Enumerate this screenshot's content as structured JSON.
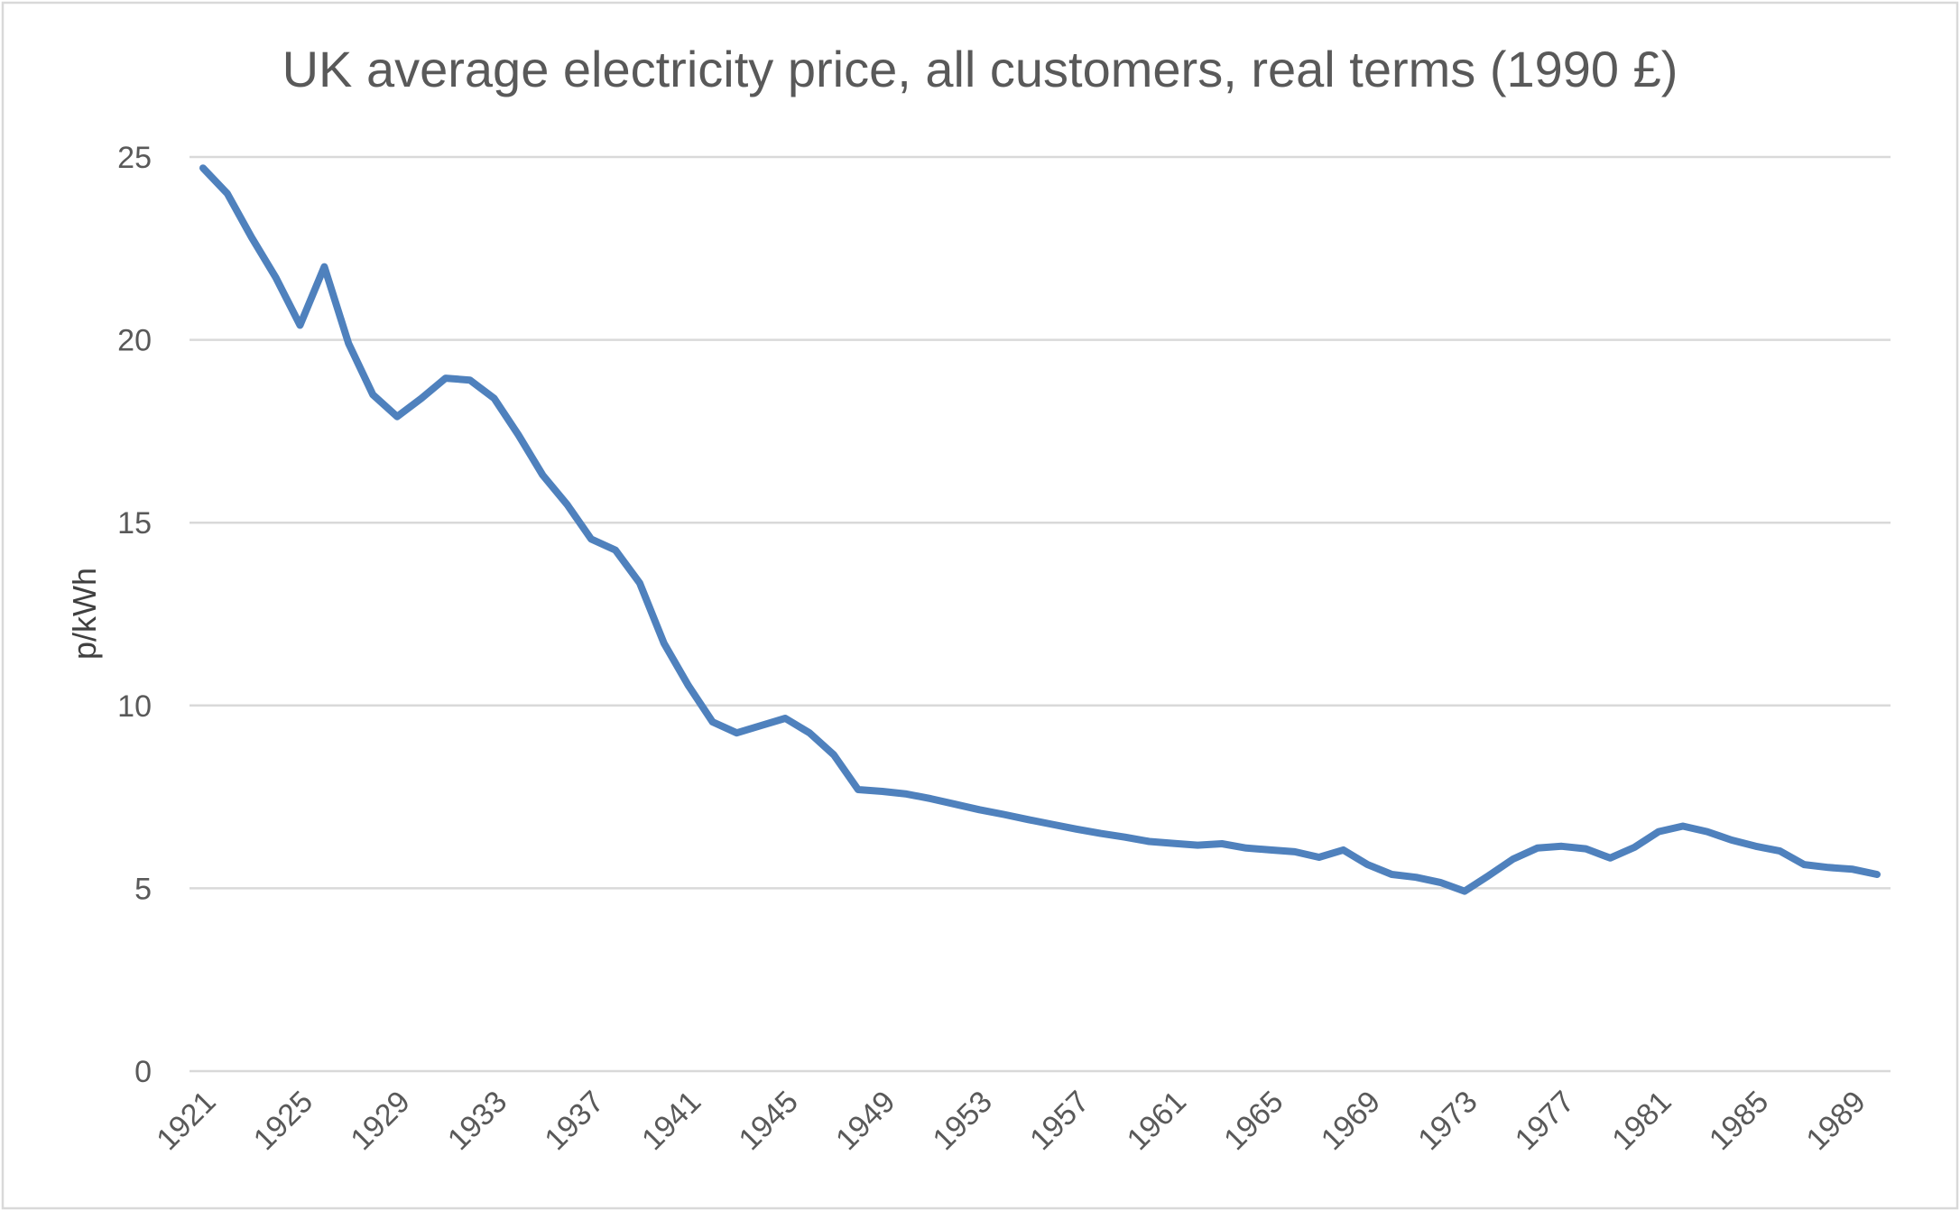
{
  "chart_data": {
    "type": "line",
    "title": "UK average electricity price, all customers, real terms (1990 £)",
    "xlabel": "",
    "ylabel": "p/kWh",
    "ylim": [
      0,
      25
    ],
    "yticks": [
      0,
      5,
      10,
      15,
      20,
      25
    ],
    "xtick_labels": [
      "1921",
      "1925",
      "1929",
      "1933",
      "1937",
      "1941",
      "1945",
      "1949",
      "1953",
      "1957",
      "1961",
      "1965",
      "1969",
      "1973",
      "1977",
      "1981",
      "1985",
      "1989"
    ],
    "grid": true,
    "legend": "none",
    "colors": {
      "line": "#4f81bd",
      "grid": "#d9d9d9",
      "text": "#595959",
      "border": "#d9d9d9"
    },
    "x": [
      1921,
      1922,
      1923,
      1924,
      1925,
      1926,
      1927,
      1928,
      1929,
      1930,
      1931,
      1932,
      1933,
      1934,
      1935,
      1936,
      1937,
      1938,
      1939,
      1940,
      1941,
      1942,
      1943,
      1944,
      1945,
      1946,
      1947,
      1948,
      1949,
      1950,
      1951,
      1952,
      1953,
      1954,
      1955,
      1956,
      1957,
      1958,
      1959,
      1960,
      1961,
      1962,
      1963,
      1964,
      1965,
      1966,
      1967,
      1968,
      1969,
      1970,
      1971,
      1972,
      1973,
      1974,
      1975,
      1976,
      1977,
      1978,
      1979,
      1980,
      1981,
      1982,
      1983,
      1984,
      1985,
      1986,
      1987,
      1988,
      1989,
      1990
    ],
    "series": [
      {
        "values": [
          24.7,
          24.0,
          22.8,
          21.7,
          20.4,
          22.0,
          19.9,
          18.5,
          17.9,
          18.4,
          18.95,
          18.9,
          18.4,
          17.4,
          16.3,
          15.5,
          14.55,
          14.25,
          13.35,
          11.7,
          10.55,
          9.55,
          9.25,
          9.45,
          9.65,
          9.25,
          8.65,
          7.7,
          7.65,
          7.58,
          7.45,
          7.3,
          7.15,
          7.02,
          6.88,
          6.75,
          6.62,
          6.5,
          6.4,
          6.28,
          6.23,
          6.18,
          6.22,
          6.1,
          6.05,
          6.0,
          5.85,
          6.05,
          5.65,
          5.38,
          5.3,
          5.16,
          4.92,
          5.35,
          5.8,
          6.1,
          6.15,
          6.08,
          5.83,
          6.12,
          6.55,
          6.7,
          6.55,
          6.32,
          6.15,
          6.02,
          5.65,
          5.57,
          5.52,
          5.38
        ]
      }
    ]
  }
}
